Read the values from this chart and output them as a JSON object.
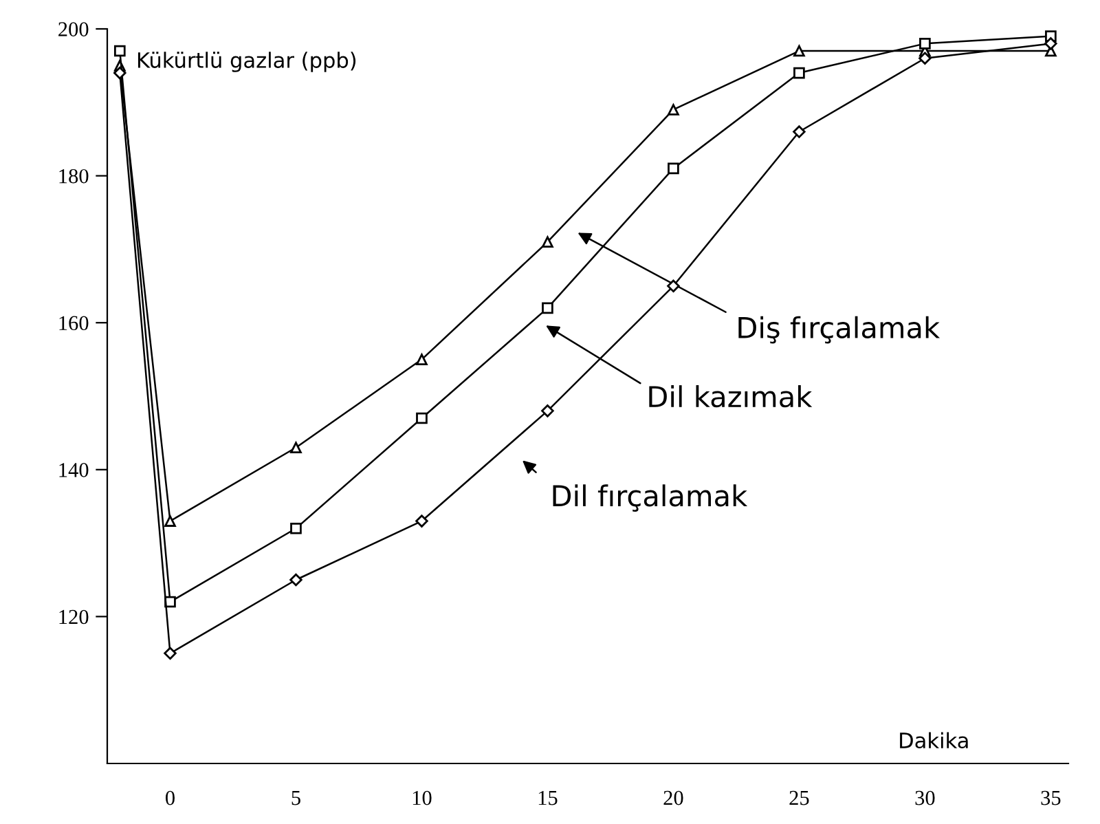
{
  "chart_data": {
    "type": "line",
    "xlabel": "Dakika",
    "ylabel": "Kükürtlü gazlar (ppb)",
    "x": [
      -2,
      0,
      5,
      10,
      15,
      20,
      25,
      30,
      35
    ],
    "series": [
      {
        "color": "#000000",
        "marker": "triangle",
        "values": [
          195,
          133,
          143,
          155,
          171,
          189,
          197,
          197,
          197
        ]
      },
      {
        "color": "#000000",
        "marker": "square",
        "values": [
          197,
          122,
          132,
          147,
          162,
          181,
          194,
          198,
          199
        ]
      },
      {
        "color": "#000000",
        "marker": "diamond",
        "values": [
          194,
          115,
          125,
          133,
          148,
          165,
          186,
          196,
          198
        ]
      }
    ],
    "annotations": [
      "Diş fırçalamak",
      "Dil kazımak",
      "Dil fırçalamak"
    ],
    "xlim": [
      -2.5,
      35.7
    ],
    "ylim": [
      100,
      200
    ],
    "xticks": [
      0,
      5,
      10,
      15,
      20,
      25,
      30,
      35
    ],
    "yticks": [
      120,
      140,
      160,
      180,
      200
    ],
    "grid": false,
    "legend": false,
    "line_style": "solid"
  }
}
